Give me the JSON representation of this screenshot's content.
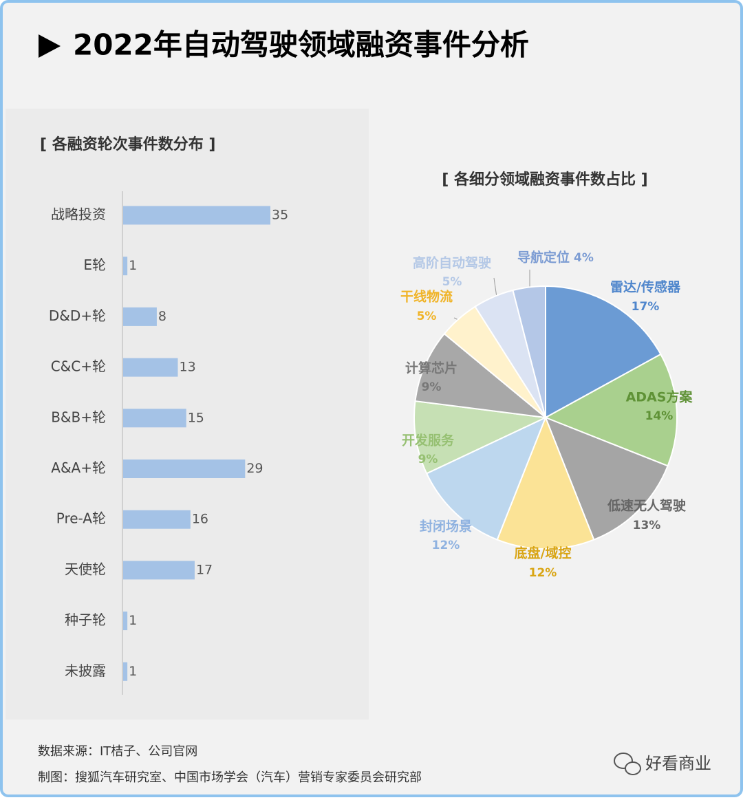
{
  "header": {
    "title": "2022年自动驾驶领域融资事件分析"
  },
  "chart_data": [
    {
      "type": "bar",
      "orientation": "horizontal",
      "title": "[ 各融资轮次事件数分布 ]",
      "categories": [
        "战略投资",
        "E轮",
        "D&D+轮",
        "C&C+轮",
        "B&B+轮",
        "A&A+轮",
        "Pre-A轮",
        "天使轮",
        "种子轮",
        "未披露"
      ],
      "values": [
        35,
        1,
        8,
        13,
        15,
        29,
        16,
        17,
        1,
        1
      ],
      "color": "#a4c2e6"
    },
    {
      "type": "pie",
      "title": "[ 各细分领域融资事件数占比 ]",
      "categories": [
        "雷达/传感器",
        "ADAS方案",
        "低速无人驾驶",
        "底盘/域控",
        "封闭场景",
        "开发服务",
        "计算芯片",
        "干线物流",
        "高阶自动驾驶",
        "导航定位"
      ],
      "values": [
        17,
        14,
        13,
        12,
        12,
        9,
        9,
        5,
        5,
        4
      ],
      "value_labels": [
        "17%",
        "14%",
        "13%",
        "12%",
        "12%",
        "9%",
        "9%",
        "5%",
        "5%",
        "4%"
      ],
      "colors": [
        "#6b9bd4",
        "#a9d08e",
        "#a5a5a5",
        "#fbe396",
        "#bdd7ee",
        "#c6e0b4",
        "#a8a8a8",
        "#fff2cc",
        "#dbe3f3",
        "#b4c7e7"
      ],
      "label_colors": [
        "#4f86cc",
        "#5f9236",
        "#666666",
        "#d9a514",
        "#8fb2e0",
        "#96c072",
        "#777777",
        "#f0b429",
        "#b4c8e6",
        "#7c9cd3"
      ]
    }
  ],
  "footer": {
    "source": "数据来源：IT桔子、公司官网",
    "credit": "制图：搜狐汽车研究室、中国市场学会（汽车）营销专家委员会研究部",
    "watermark": "好看商业"
  }
}
